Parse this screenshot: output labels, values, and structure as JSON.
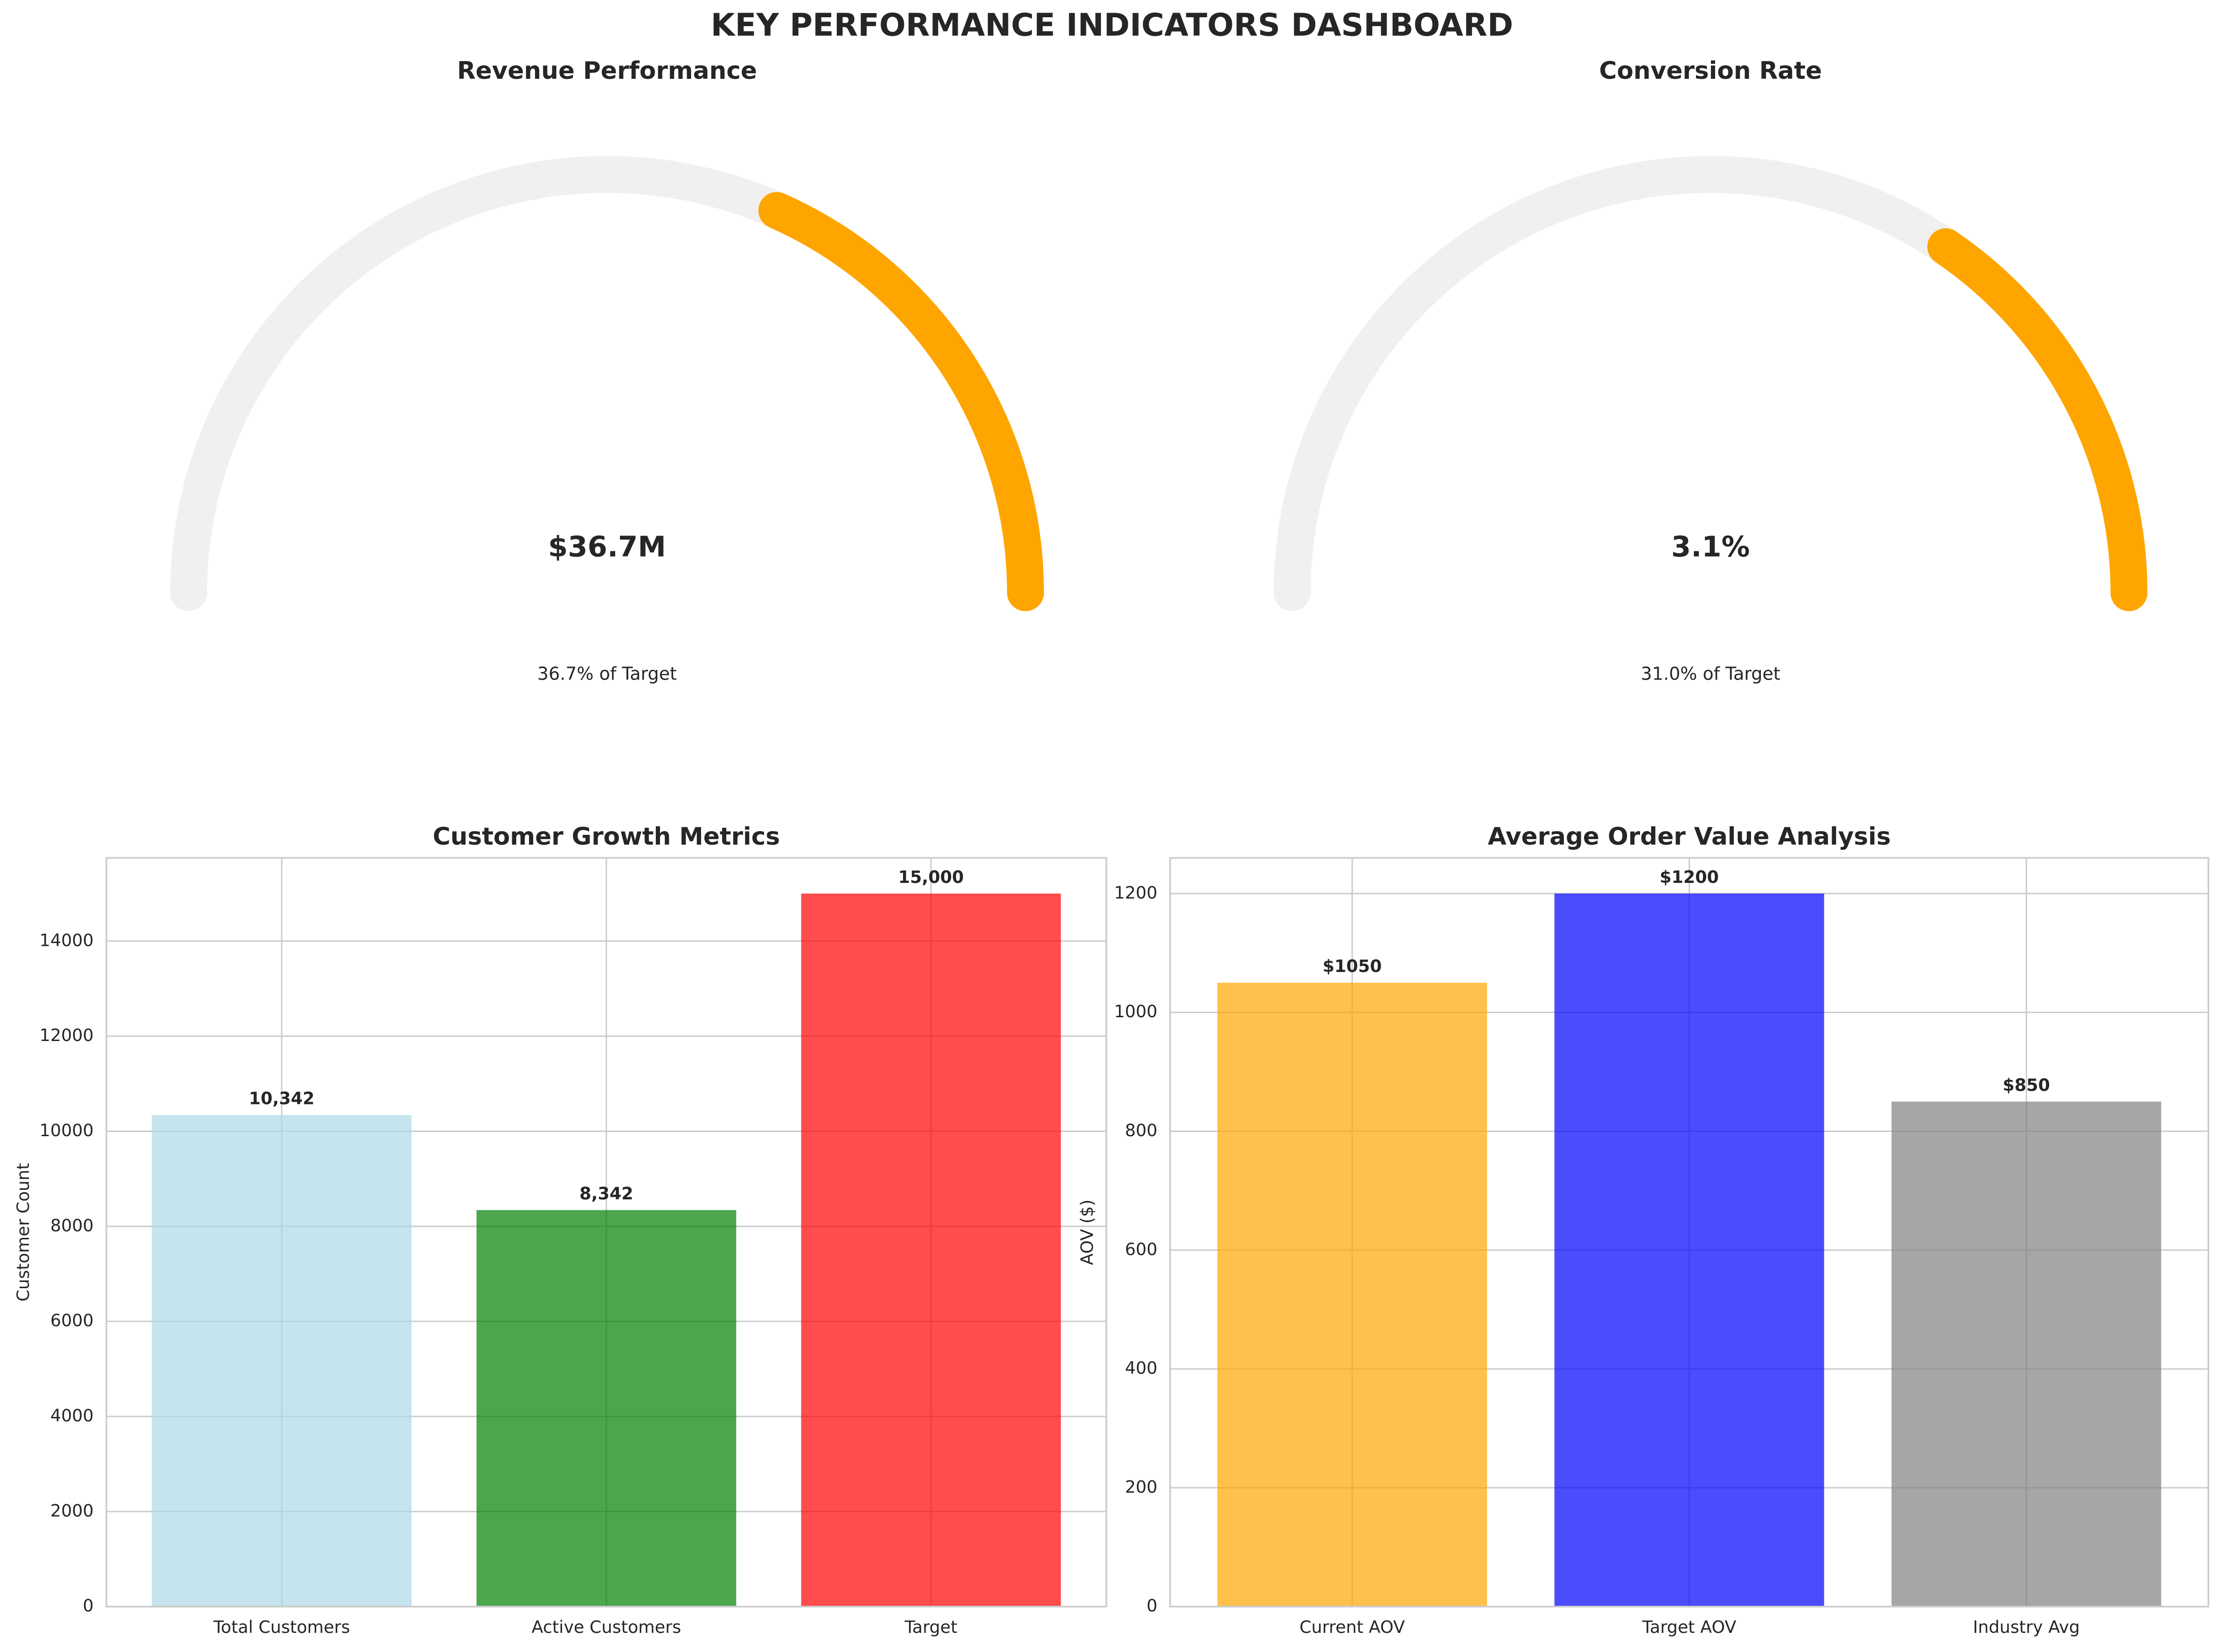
{
  "title": "KEY PERFORMANCE INDICATORS DASHBOARD",
  "chart_data": [
    {
      "type": "gauge",
      "title": "Revenue Performance",
      "value": 36700000,
      "value_label": "$36.7M",
      "percent": 36.7,
      "percent_label": "36.7% of Target",
      "ylim": [
        0,
        100
      ],
      "color": "#ffa500",
      "track_color": "#f0f0f0"
    },
    {
      "type": "gauge",
      "title": "Conversion Rate",
      "value": 3.1,
      "value_label": "3.1%",
      "percent": 31.0,
      "percent_label": "31.0% of Target",
      "ylim": [
        0,
        100
      ],
      "color": "#ffa500",
      "track_color": "#f0f0f0"
    },
    {
      "type": "bar",
      "title": "Customer Growth Metrics",
      "ylabel": "Customer Count",
      "categories": [
        "Total Customers",
        "Active Customers",
        "Target"
      ],
      "values": [
        10342,
        8342,
        15000
      ],
      "value_labels": [
        "10,342",
        "8,342",
        "15,000"
      ],
      "colors": [
        "#add8e6",
        "#008000",
        "#ff0000"
      ],
      "ylim": [
        0,
        15750
      ],
      "yticks": [
        0,
        2000,
        4000,
        6000,
        8000,
        10000,
        12000,
        14000
      ],
      "grid": true
    },
    {
      "type": "bar",
      "title": "Average Order Value Analysis",
      "ylabel": "AOV ($)",
      "categories": [
        "Current AOV",
        "Target AOV",
        "Industry Avg"
      ],
      "values": [
        1050,
        1200,
        850
      ],
      "value_labels": [
        "$1050",
        "$1200",
        "$850"
      ],
      "colors": [
        "#ffa500",
        "#0000ff",
        "#808080"
      ],
      "ylim": [
        0,
        1260
      ],
      "yticks": [
        0,
        200,
        400,
        600,
        800,
        1000,
        1200
      ],
      "grid": true
    }
  ]
}
